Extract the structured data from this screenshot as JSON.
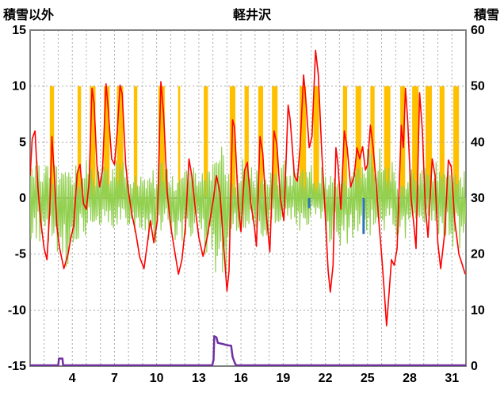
{
  "header": {
    "left_axis_title": "積雪以外",
    "station_name": "軽井沢",
    "right_axis_title": "積雪"
  },
  "chart_data": {
    "type": "line",
    "title": "軽井沢",
    "x_axis": {
      "unit": "day_of_month",
      "min": 1,
      "max": 32,
      "tick_labels": [
        4,
        7,
        10,
        13,
        16,
        19,
        22,
        25,
        28,
        31
      ]
    },
    "left_axis": {
      "label": "積雪以外",
      "min": -15,
      "max": 15,
      "ticks": [
        15,
        10,
        5,
        0,
        -5,
        -10,
        -15
      ]
    },
    "right_axis": {
      "label": "積雪",
      "min": 0,
      "max": 60,
      "ticks": [
        60,
        50,
        40,
        30,
        20,
        10,
        0
      ]
    },
    "style": {
      "background": "#FFFFFF",
      "border": "#808080",
      "grid": "#A9A9A9",
      "zero_line": "#808080",
      "text": "#000000"
    },
    "series": {
      "sunshine_bars": {
        "axis": "left",
        "color": "#FFC000",
        "top_value": 10,
        "bottom_value": 0,
        "bars": [
          {
            "center": 2.55,
            "width": 0.3
          },
          {
            "center": 4.5,
            "width": 0.25
          },
          {
            "center": 5.45,
            "width": 0.4
          },
          {
            "center": 6.45,
            "width": 0.4
          },
          {
            "center": 7.4,
            "width": 0.45
          },
          {
            "center": 8.5,
            "width": 0.25
          },
          {
            "center": 10.35,
            "width": 0.45
          },
          {
            "center": 11.6,
            "width": 0.15
          },
          {
            "center": 13.5,
            "width": 0.3
          },
          {
            "center": 15.4,
            "width": 0.4
          },
          {
            "center": 16.4,
            "width": 0.3
          },
          {
            "center": 17.4,
            "width": 0.35
          },
          {
            "center": 18.4,
            "width": 0.4
          },
          {
            "center": 20.4,
            "width": 0.45
          },
          {
            "center": 21.35,
            "width": 0.4
          },
          {
            "center": 23.4,
            "width": 0.3
          },
          {
            "center": 24.35,
            "width": 0.4
          },
          {
            "center": 25.35,
            "width": 0.3
          },
          {
            "center": 26.4,
            "width": 0.45
          },
          {
            "center": 27.5,
            "width": 0.35
          },
          {
            "center": 28.4,
            "width": 0.45
          },
          {
            "center": 29.35,
            "width": 0.45
          },
          {
            "center": 30.3,
            "width": 0.35
          },
          {
            "center": 31.3,
            "width": 0.4
          }
        ]
      },
      "green_series": {
        "axis": "left",
        "color": "#92D050",
        "envelope": [
          {
            "day": 1,
            "up": 3.5,
            "down": -4.0
          },
          {
            "day": 2,
            "up": 3.0,
            "down": -5.0
          },
          {
            "day": 3,
            "up": 2.5,
            "down": -6.5
          },
          {
            "day": 4,
            "up": 3.0,
            "down": -4.0
          },
          {
            "day": 5,
            "up": 3.5,
            "down": -2.5
          },
          {
            "day": 6,
            "up": 3.0,
            "down": -3.0
          },
          {
            "day": 7,
            "up": 4.0,
            "down": -2.5
          },
          {
            "day": 8,
            "up": 2.0,
            "down": -4.0
          },
          {
            "day": 9,
            "up": 2.5,
            "down": -4.5
          },
          {
            "day": 10,
            "up": 4.0,
            "down": -3.0
          },
          {
            "day": 11,
            "up": 2.0,
            "down": -4.0
          },
          {
            "day": 12,
            "up": 3.0,
            "down": -3.5
          },
          {
            "day": 13,
            "up": 3.0,
            "down": -5.0
          },
          {
            "day": 14,
            "up": 5.0,
            "down": -7.5
          },
          {
            "day": 15,
            "up": 3.0,
            "down": -4.0
          },
          {
            "day": 16,
            "up": 3.5,
            "down": -3.0
          },
          {
            "day": 17,
            "up": 2.5,
            "down": -4.0
          },
          {
            "day": 18,
            "up": 3.0,
            "down": -3.0
          },
          {
            "day": 19,
            "up": 3.5,
            "down": -2.5
          },
          {
            "day": 20,
            "up": 3.0,
            "down": -3.0
          },
          {
            "day": 21,
            "up": 3.0,
            "down": -2.0
          },
          {
            "day": 22,
            "up": 2.5,
            "down": -4.0
          },
          {
            "day": 23,
            "up": 2.0,
            "down": -4.5
          },
          {
            "day": 24,
            "up": 3.0,
            "down": -3.0
          },
          {
            "day": 25,
            "up": 4.5,
            "down": -3.5
          },
          {
            "day": 26,
            "up": 3.5,
            "down": -3.0
          },
          {
            "day": 27,
            "up": 2.0,
            "down": -4.0
          },
          {
            "day": 28,
            "up": 3.0,
            "down": -3.5
          },
          {
            "day": 29,
            "up": 3.5,
            "down": -2.5
          },
          {
            "day": 30,
            "up": 2.5,
            "down": -4.0
          },
          {
            "day": 31,
            "up": 3.0,
            "down": -4.5
          }
        ]
      },
      "red_line": {
        "axis": "left",
        "color": "#FF0000",
        "points": [
          [
            1.0,
            2.0
          ],
          [
            1.15,
            5.3
          ],
          [
            1.35,
            6.0
          ],
          [
            1.55,
            1.0
          ],
          [
            1.75,
            -2.0
          ],
          [
            2.0,
            -4.5
          ],
          [
            2.2,
            -5.5
          ],
          [
            2.4,
            -1.0
          ],
          [
            2.55,
            5.5
          ],
          [
            2.7,
            2.5
          ],
          [
            2.9,
            -2.5
          ],
          [
            3.1,
            -4.5
          ],
          [
            3.4,
            -6.3
          ],
          [
            3.7,
            -5.0
          ],
          [
            3.9,
            -3.5
          ],
          [
            4.1,
            -2.5
          ],
          [
            4.35,
            2.2
          ],
          [
            4.55,
            3.0
          ],
          [
            4.8,
            -0.5
          ],
          [
            5.0,
            -1.0
          ],
          [
            5.2,
            1.5
          ],
          [
            5.4,
            9.8
          ],
          [
            5.55,
            8.5
          ],
          [
            5.75,
            3.0
          ],
          [
            5.95,
            1.0
          ],
          [
            6.15,
            2.5
          ],
          [
            6.4,
            10.2
          ],
          [
            6.55,
            8.0
          ],
          [
            6.8,
            3.5
          ],
          [
            7.0,
            3.0
          ],
          [
            7.2,
            6.0
          ],
          [
            7.4,
            10.1
          ],
          [
            7.55,
            9.3
          ],
          [
            7.8,
            3.0
          ],
          [
            8.0,
            0.5
          ],
          [
            8.25,
            -1.5
          ],
          [
            8.5,
            -3.0
          ],
          [
            8.8,
            -5.3
          ],
          [
            9.1,
            -6.3
          ],
          [
            9.35,
            -4.0
          ],
          [
            9.55,
            -2.0
          ],
          [
            9.8,
            -4.0
          ],
          [
            10.05,
            -2.0
          ],
          [
            10.3,
            10.4
          ],
          [
            10.5,
            7.5
          ],
          [
            10.75,
            0.5
          ],
          [
            11.0,
            -2.5
          ],
          [
            11.25,
            -4.5
          ],
          [
            11.55,
            -6.8
          ],
          [
            11.8,
            -5.5
          ],
          [
            12.05,
            -2.5
          ],
          [
            12.3,
            3.5
          ],
          [
            12.5,
            2.0
          ],
          [
            12.75,
            -1.0
          ],
          [
            13.0,
            -3.5
          ],
          [
            13.3,
            -5.2
          ],
          [
            13.6,
            -3.5
          ],
          [
            13.85,
            -1.5
          ],
          [
            14.05,
            0.0
          ],
          [
            14.25,
            2.0
          ],
          [
            14.5,
            0.5
          ],
          [
            14.75,
            -4.0
          ],
          [
            15.0,
            -8.3
          ],
          [
            15.15,
            -6.5
          ],
          [
            15.4,
            7.0
          ],
          [
            15.55,
            6.3
          ],
          [
            15.8,
            -0.5
          ],
          [
            16.0,
            -3.0
          ],
          [
            16.25,
            2.5
          ],
          [
            16.45,
            3.2
          ],
          [
            16.7,
            -0.5
          ],
          [
            16.95,
            -2.5
          ],
          [
            17.1,
            -4.3
          ],
          [
            17.35,
            5.5
          ],
          [
            17.55,
            4.0
          ],
          [
            17.8,
            -1.5
          ],
          [
            18.05,
            -4.8
          ],
          [
            18.35,
            6.0
          ],
          [
            18.55,
            4.8
          ],
          [
            18.8,
            0.0
          ],
          [
            19.05,
            -2.0
          ],
          [
            19.35,
            8.3
          ],
          [
            19.5,
            7.0
          ],
          [
            19.8,
            2.0
          ],
          [
            20.0,
            1.5
          ],
          [
            20.2,
            4.5
          ],
          [
            20.45,
            11.0
          ],
          [
            20.6,
            9.0
          ],
          [
            20.85,
            4.5
          ],
          [
            21.05,
            5.5
          ],
          [
            21.3,
            13.2
          ],
          [
            21.5,
            11.0
          ],
          [
            21.75,
            4.0
          ],
          [
            21.95,
            -0.5
          ],
          [
            22.2,
            -6.5
          ],
          [
            22.35,
            -8.4
          ],
          [
            22.55,
            -6.0
          ],
          [
            22.75,
            4.5
          ],
          [
            22.9,
            3.0
          ],
          [
            23.1,
            -1.0
          ],
          [
            23.35,
            6.0
          ],
          [
            23.55,
            4.5
          ],
          [
            23.8,
            1.0
          ],
          [
            24.05,
            2.0
          ],
          [
            24.25,
            4.5
          ],
          [
            24.45,
            3.5
          ],
          [
            24.65,
            4.6
          ],
          [
            24.85,
            2.5
          ],
          [
            25.0,
            3.0
          ],
          [
            25.2,
            6.5
          ],
          [
            25.4,
            4.5
          ],
          [
            25.6,
            1.5
          ],
          [
            25.8,
            -2.0
          ],
          [
            26.0,
            -5.0
          ],
          [
            26.2,
            -8.5
          ],
          [
            26.35,
            -11.4
          ],
          [
            26.5,
            -9.0
          ],
          [
            26.7,
            -5.5
          ],
          [
            26.9,
            -6.0
          ],
          [
            27.1,
            -4.5
          ],
          [
            27.4,
            6.5
          ],
          [
            27.55,
            4.5
          ],
          [
            27.7,
            9.8
          ],
          [
            27.85,
            7.0
          ],
          [
            28.1,
            0.0
          ],
          [
            28.3,
            -2.5
          ],
          [
            28.45,
            -4.5
          ],
          [
            28.7,
            9.4
          ],
          [
            28.9,
            6.0
          ],
          [
            29.1,
            -0.5
          ],
          [
            29.3,
            -3.5
          ],
          [
            29.6,
            3.5
          ],
          [
            29.8,
            2.0
          ],
          [
            30.0,
            -4.0
          ],
          [
            30.2,
            -6.3
          ],
          [
            30.5,
            -3.0
          ],
          [
            30.75,
            3.4
          ],
          [
            30.95,
            2.8
          ],
          [
            31.2,
            -2.0
          ],
          [
            31.5,
            -5.0
          ],
          [
            31.75,
            -6.0
          ],
          [
            31.95,
            -6.8
          ]
        ]
      },
      "blue_bars": {
        "axis": "left",
        "color": "#2E75B6",
        "bars": [
          {
            "t": 20.85,
            "value": -0.9
          },
          {
            "t": 24.72,
            "value": -3.2
          }
        ]
      },
      "purple_line": {
        "axis": "right",
        "color": "#7030A0",
        "points": [
          [
            1,
            0
          ],
          [
            3.0,
            0
          ],
          [
            3.05,
            1.2
          ],
          [
            3.3,
            1.2
          ],
          [
            3.35,
            0
          ],
          [
            13.95,
            0
          ],
          [
            14.05,
            1.0
          ],
          [
            14.1,
            5.2
          ],
          [
            14.25,
            5.0
          ],
          [
            14.35,
            4.0
          ],
          [
            14.7,
            3.8
          ],
          [
            15.0,
            3.6
          ],
          [
            15.3,
            3.5
          ],
          [
            15.4,
            1.5
          ],
          [
            15.55,
            0.5
          ],
          [
            15.65,
            0
          ],
          [
            32,
            0
          ]
        ]
      }
    }
  }
}
